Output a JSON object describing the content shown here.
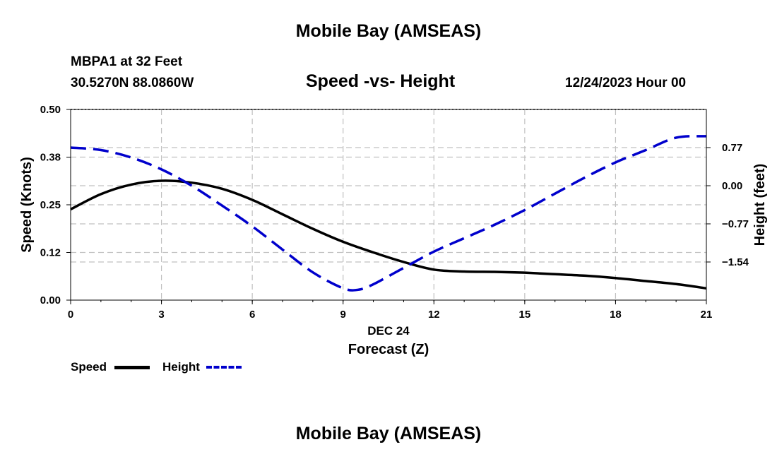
{
  "page_title": "Mobile Bay (AMSEAS)",
  "footer_title": "Mobile Bay (AMSEAS)",
  "station": {
    "name": "MBPA1 at 32 Feet",
    "coords": "30.5270N  88.0860W"
  },
  "colors": {
    "speed": "#000000",
    "height": "#0000cc",
    "grid": "#c0c0c0"
  },
  "chart_data": {
    "type": "line",
    "title": "Speed -vs- Height",
    "date_label": "12/24/2023 Hour 00",
    "xlabel": "Forecast (Z)",
    "xlabel_sub": "DEC 24",
    "ylabel": "Speed (Knots)",
    "ylabel_right": "Height (feet)",
    "xlim": [
      0,
      21
    ],
    "ylim": [
      0,
      0.5
    ],
    "ylim_right": [
      -2.31,
      1.54
    ],
    "x_ticks": [
      0,
      3,
      6,
      9,
      12,
      15,
      18,
      21
    ],
    "y_ticks": [
      0,
      0.125,
      0.25,
      0.375,
      0.5
    ],
    "y_tick_labels": [
      "0.00",
      "0.12",
      "0.25",
      "0.38",
      "0.50"
    ],
    "y_right_ticks": [
      -1.54,
      -0.77,
      0.0,
      0.77
    ],
    "y_right_tick_labels": [
      "−1.54",
      "−0.77",
      "0.00",
      "0.77"
    ],
    "series": [
      {
        "name": "Speed",
        "axis": "left",
        "style": "solid",
        "x": [
          0,
          1,
          2,
          3,
          4,
          5,
          6,
          7,
          8,
          9,
          10,
          11,
          12,
          13,
          14,
          15,
          16,
          17,
          18,
          19,
          20,
          21
        ],
        "values": [
          0.238,
          0.278,
          0.303,
          0.313,
          0.308,
          0.292,
          0.263,
          0.225,
          0.187,
          0.153,
          0.125,
          0.1,
          0.08,
          0.075,
          0.074,
          0.072,
          0.068,
          0.064,
          0.058,
          0.05,
          0.042,
          0.031
        ]
      },
      {
        "name": "Height",
        "axis": "right",
        "style": "dashed",
        "x": [
          0,
          1,
          2,
          3,
          4,
          5,
          6,
          7,
          8,
          9,
          9.5,
          10,
          11,
          12,
          13,
          14,
          15,
          16,
          17,
          18,
          19,
          20,
          21
        ],
        "values": [
          0.77,
          0.72,
          0.57,
          0.33,
          0.0,
          -0.4,
          -0.82,
          -1.29,
          -1.75,
          -2.07,
          -2.1,
          -1.99,
          -1.66,
          -1.33,
          -1.06,
          -0.79,
          -0.49,
          -0.16,
          0.17,
          0.47,
          0.72,
          0.97,
          1.0
        ]
      }
    ],
    "legend": [
      {
        "label": "Speed",
        "style": "solid"
      },
      {
        "label": "Height",
        "style": "dashed"
      }
    ]
  }
}
